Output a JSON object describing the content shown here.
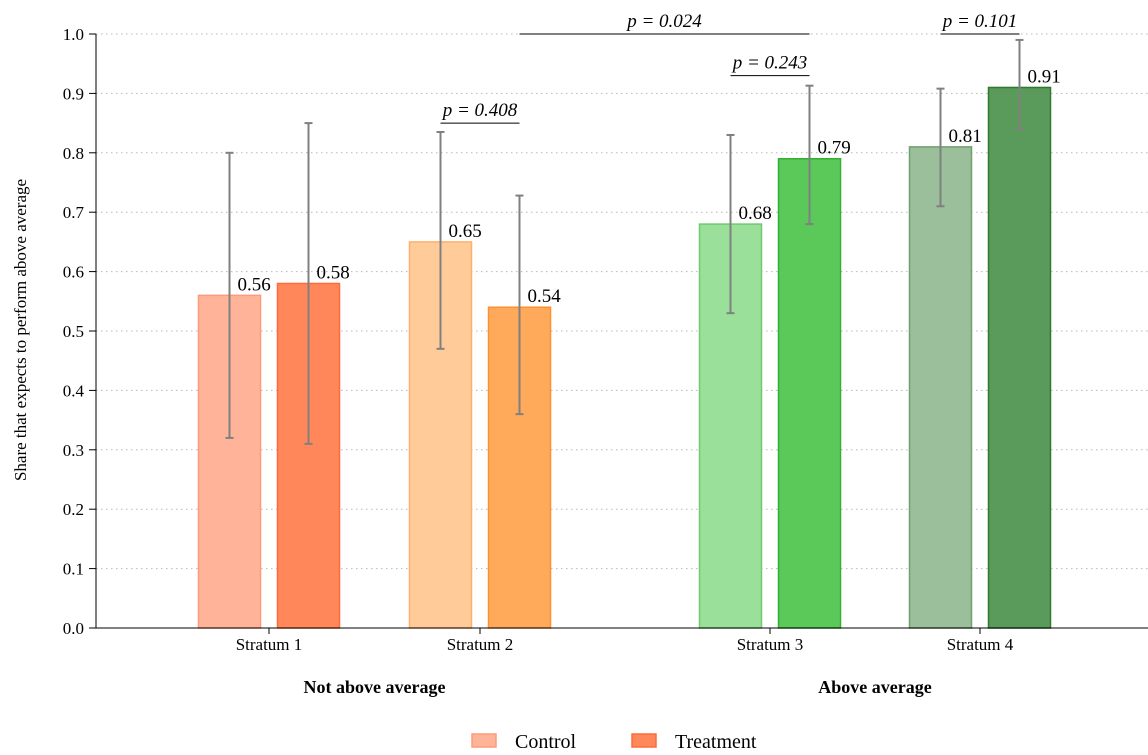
{
  "chart_data": {
    "type": "bar",
    "ylabel": "Share that expects to perform above average",
    "ylim": [
      0,
      1.0
    ],
    "yticks": [
      "0.0",
      "0.1",
      "0.2",
      "0.3",
      "0.4",
      "0.5",
      "0.6",
      "0.7",
      "0.8",
      "0.9",
      "1.0"
    ],
    "grid": true,
    "categories": [
      "Stratum 1",
      "Stratum 2",
      "Stratum 3",
      "Stratum 4"
    ],
    "groups": [
      {
        "label": "Not above average",
        "categories": [
          "Stratum 1",
          "Stratum 2"
        ]
      },
      {
        "label": "Above average",
        "categories": [
          "Stratum 3",
          "Stratum 4"
        ]
      }
    ],
    "series": [
      {
        "name": "Control",
        "values": [
          0.56,
          0.65,
          0.68,
          0.81
        ],
        "value_labels": [
          "0.56",
          "0.65",
          "0.68",
          "0.81"
        ],
        "ci_low": [
          0.32,
          0.47,
          0.53,
          0.71
        ],
        "ci_high": [
          0.8,
          0.835,
          0.83,
          0.908
        ]
      },
      {
        "name": "Treatment",
        "values": [
          0.58,
          0.54,
          0.79,
          0.91
        ],
        "value_labels": [
          "0.58",
          "0.54",
          "0.79",
          "0.91"
        ],
        "ci_low": [
          0.31,
          0.36,
          0.68,
          0.84
        ],
        "ci_high": [
          0.85,
          0.728,
          0.913,
          0.99
        ]
      }
    ],
    "colors": {
      "Stratum 1": {
        "Control": {
          "fill": "#ffb499",
          "stroke": "#ff9a78"
        },
        "Treatment": {
          "fill": "#ff875a",
          "stroke": "#ff6a38"
        }
      },
      "Stratum 2": {
        "Control": {
          "fill": "#ffcb99",
          "stroke": "#ffb06a"
        },
        "Treatment": {
          "fill": "#ffaa5a",
          "stroke": "#ff9030"
        }
      },
      "Stratum 3": {
        "Control": {
          "fill": "#9adf9a",
          "stroke": "#6fcc6f"
        },
        "Treatment": {
          "fill": "#5ac95a",
          "stroke": "#32b032"
        }
      },
      "Stratum 4": {
        "Control": {
          "fill": "#9abf9a",
          "stroke": "#6fa06f"
        },
        "Treatment": {
          "fill": "#5a9a5a",
          "stroke": "#2f7a2f"
        }
      }
    },
    "legend": {
      "placement": "bottom-center",
      "entries": [
        {
          "name": "Control",
          "fill": "#ffb499",
          "stroke": "#ff9a78"
        },
        {
          "name": "Treatment",
          "fill": "#ff875a",
          "stroke": "#ff6a38"
        }
      ]
    },
    "annotations": [
      {
        "label": "p = 0.408",
        "from_category": "Stratum 2",
        "from_series": "Control",
        "to_category": "Stratum 2",
        "to_series": "Treatment",
        "y": 0.85
      },
      {
        "label": "p = 0.243",
        "from_category": "Stratum 3",
        "from_series": "Control",
        "to_category": "Stratum 3",
        "to_series": "Treatment",
        "y": 0.93
      },
      {
        "label": "p = 0.101",
        "from_category": "Stratum 4",
        "from_series": "Control",
        "to_category": "Stratum 4",
        "to_series": "Treatment",
        "y": 1.0
      },
      {
        "label": "p = 0.024",
        "from_category": "Stratum 2",
        "from_series": "Treatment",
        "to_category": "Stratum 3",
        "to_series": "Treatment",
        "y": 1.0
      }
    ]
  }
}
